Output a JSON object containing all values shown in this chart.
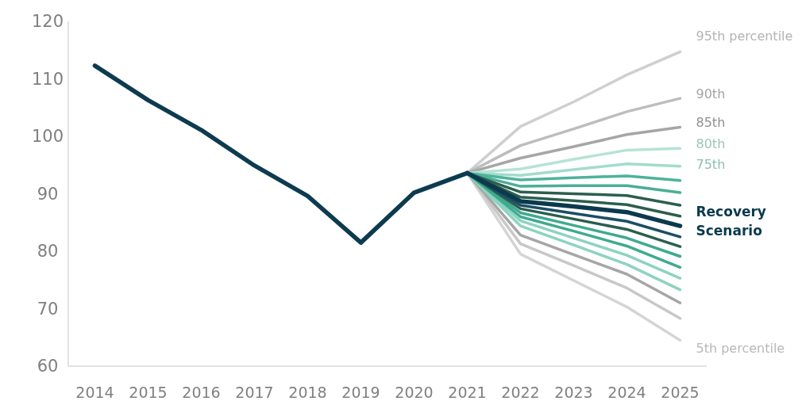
{
  "chart_data": {
    "type": "line",
    "categories": [
      "2014",
      "2015",
      "2016",
      "2017",
      "2018",
      "2019",
      "2020",
      "2021",
      "2022",
      "2023",
      "2024",
      "2025"
    ],
    "ylim": [
      60,
      120
    ],
    "yticks": [
      60,
      70,
      80,
      90,
      100,
      110,
      120
    ],
    "grid": false,
    "marker": "none",
    "line_style": "solid",
    "series": [
      {
        "color": "#0d3b4f",
        "values": [
          112.3,
          106.3,
          101.1,
          94.9,
          89.6,
          81.5,
          90.2,
          93.6,
          null,
          null,
          null,
          null
        ]
      },
      {
        "name": "95th percentile",
        "color": "#cfcfcf",
        "values": [
          null,
          null,
          null,
          null,
          null,
          null,
          null,
          93.6,
          101.7,
          106.0,
          110.7,
          114.7
        ]
      },
      {
        "name": "90th",
        "color": "#bdbdbd",
        "values": [
          null,
          null,
          null,
          null,
          null,
          null,
          null,
          93.6,
          98.4,
          101.3,
          104.3,
          106.6
        ]
      },
      {
        "name": "85th",
        "color": "#a6a6a6",
        "values": [
          null,
          null,
          null,
          null,
          null,
          null,
          null,
          93.6,
          96.2,
          98.2,
          100.3,
          101.6
        ]
      },
      {
        "name": "80th",
        "color": "#b6e3d6",
        "values": [
          null,
          null,
          null,
          null,
          null,
          null,
          null,
          93.6,
          94.3,
          96.0,
          97.6,
          97.9
        ]
      },
      {
        "name": "75th",
        "color": "#a3dccb",
        "values": [
          null,
          null,
          null,
          null,
          null,
          null,
          null,
          93.6,
          93.2,
          94.2,
          95.2,
          94.8
        ]
      },
      {
        "color": "#4db39a",
        "values": [
          null,
          null,
          null,
          null,
          null,
          null,
          null,
          93.6,
          92.4,
          92.8,
          93.1,
          92.3
        ]
      },
      {
        "color": "#4aae98",
        "values": [
          null,
          null,
          null,
          null,
          null,
          null,
          null,
          93.6,
          91.3,
          91.4,
          91.4,
          90.2
        ]
      },
      {
        "color": "#2b5e4e",
        "values": [
          null,
          null,
          null,
          null,
          null,
          null,
          null,
          93.6,
          90.3,
          90.0,
          89.7,
          88.0
        ]
      },
      {
        "color": "#2b5e4e",
        "values": [
          null,
          null,
          null,
          null,
          null,
          null,
          null,
          93.6,
          89.4,
          88.8,
          88.1,
          86.1
        ]
      },
      {
        "name": "Recovery Scenario",
        "color": "#0b3a4e",
        "values": [
          null,
          null,
          null,
          null,
          null,
          null,
          null,
          93.6,
          88.7,
          87.8,
          86.8,
          84.4
        ]
      },
      {
        "color": "#1b4e66",
        "values": [
          null,
          null,
          null,
          null,
          null,
          null,
          null,
          93.6,
          88.0,
          86.6,
          85.2,
          82.5
        ]
      },
      {
        "color": "#2b5e4e",
        "values": [
          null,
          null,
          null,
          null,
          null,
          null,
          null,
          93.6,
          87.4,
          85.6,
          83.8,
          80.8
        ]
      },
      {
        "color": "#3faa90",
        "values": [
          null,
          null,
          null,
          null,
          null,
          null,
          null,
          93.6,
          86.7,
          84.5,
          82.3,
          79.1
        ]
      },
      {
        "color": "#3faa90",
        "values": [
          null,
          null,
          null,
          null,
          null,
          null,
          null,
          93.6,
          86.0,
          83.5,
          80.9,
          77.2
        ]
      },
      {
        "color": "#8dd3c0",
        "values": [
          null,
          null,
          null,
          null,
          null,
          null,
          null,
          93.6,
          85.3,
          82.3,
          79.3,
          75.3
        ]
      },
      {
        "color": "#8dd3c0",
        "values": [
          null,
          null,
          null,
          null,
          null,
          null,
          null,
          93.6,
          84.4,
          81.1,
          77.7,
          73.3
        ]
      },
      {
        "color": "#a6a6a6",
        "values": [
          null,
          null,
          null,
          null,
          null,
          null,
          null,
          93.6,
          82.8,
          79.4,
          76.0,
          71.0
        ]
      },
      {
        "color": "#c8c8c8",
        "values": [
          null,
          null,
          null,
          null,
          null,
          null,
          null,
          93.6,
          81.3,
          77.5,
          73.6,
          68.3
        ]
      },
      {
        "name": "5th percentile",
        "color": "#d4d4d4",
        "values": [
          null,
          null,
          null,
          null,
          null,
          null,
          null,
          93.6,
          79.5,
          74.9,
          70.3,
          64.5
        ]
      }
    ]
  }
}
